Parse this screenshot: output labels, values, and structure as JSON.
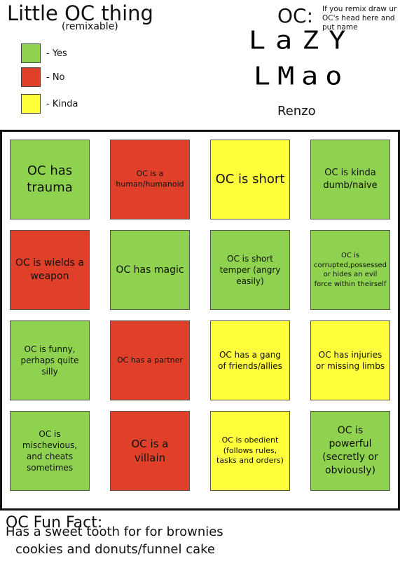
{
  "header": {
    "title": "Little OC thing",
    "subtitle": "(remixable)"
  },
  "legend": [
    {
      "color": "#8ed24f",
      "label": "- Yes"
    },
    {
      "color": "#e0402a",
      "label": "- No"
    },
    {
      "color": "#ffff3c",
      "label": "- Kinda"
    }
  ],
  "oc": {
    "label": "OC:",
    "note": "If you remix draw ur OC's head here and put name",
    "drawing": [
      "LaZY",
      "LMao"
    ],
    "name": "Renzo"
  },
  "grid": [
    {
      "text": "OC has trauma",
      "color": "#8ed24f"
    },
    {
      "text": "OC is a human/humanoid",
      "color": "#e0402a"
    },
    {
      "text": "OC is short",
      "color": "#ffff3c"
    },
    {
      "text": "OC is kinda dumb/naive",
      "color": "#8ed24f"
    },
    {
      "text": "OC is wields a weapon",
      "color": "#e0402a"
    },
    {
      "text": "OC has magic",
      "color": "#8ed24f"
    },
    {
      "text": "OC is short temper (angry easily)",
      "color": "#8ed24f"
    },
    {
      "text": "OC is corrupted,possessed or hides an evil force within theirself",
      "color": "#8ed24f"
    },
    {
      "text": "OC is funny, perhaps quite silly",
      "color": "#8ed24f"
    },
    {
      "text": "OC has a partner",
      "color": "#e0402a"
    },
    {
      "text": "OC has a gang of friends/allies",
      "color": "#ffff3c"
    },
    {
      "text": "OC has injuries or missing limbs",
      "color": "#ffff3c"
    },
    {
      "text": "OC is mischevious, and cheats sometimes",
      "color": "#8ed24f"
    },
    {
      "text": "OC is a villain",
      "color": "#e0402a"
    },
    {
      "text": "OC is obedient (follows rules, tasks and orders)",
      "color": "#ffff3c"
    },
    {
      "text": "OC is powerful (secretly or obviously)",
      "color": "#8ed24f"
    }
  ],
  "fun_fact": {
    "title": "OC Fun Fact:",
    "lines": [
      "Has a sweet tooth for for brownies",
      "cookies and donuts/funnel cake"
    ]
  }
}
